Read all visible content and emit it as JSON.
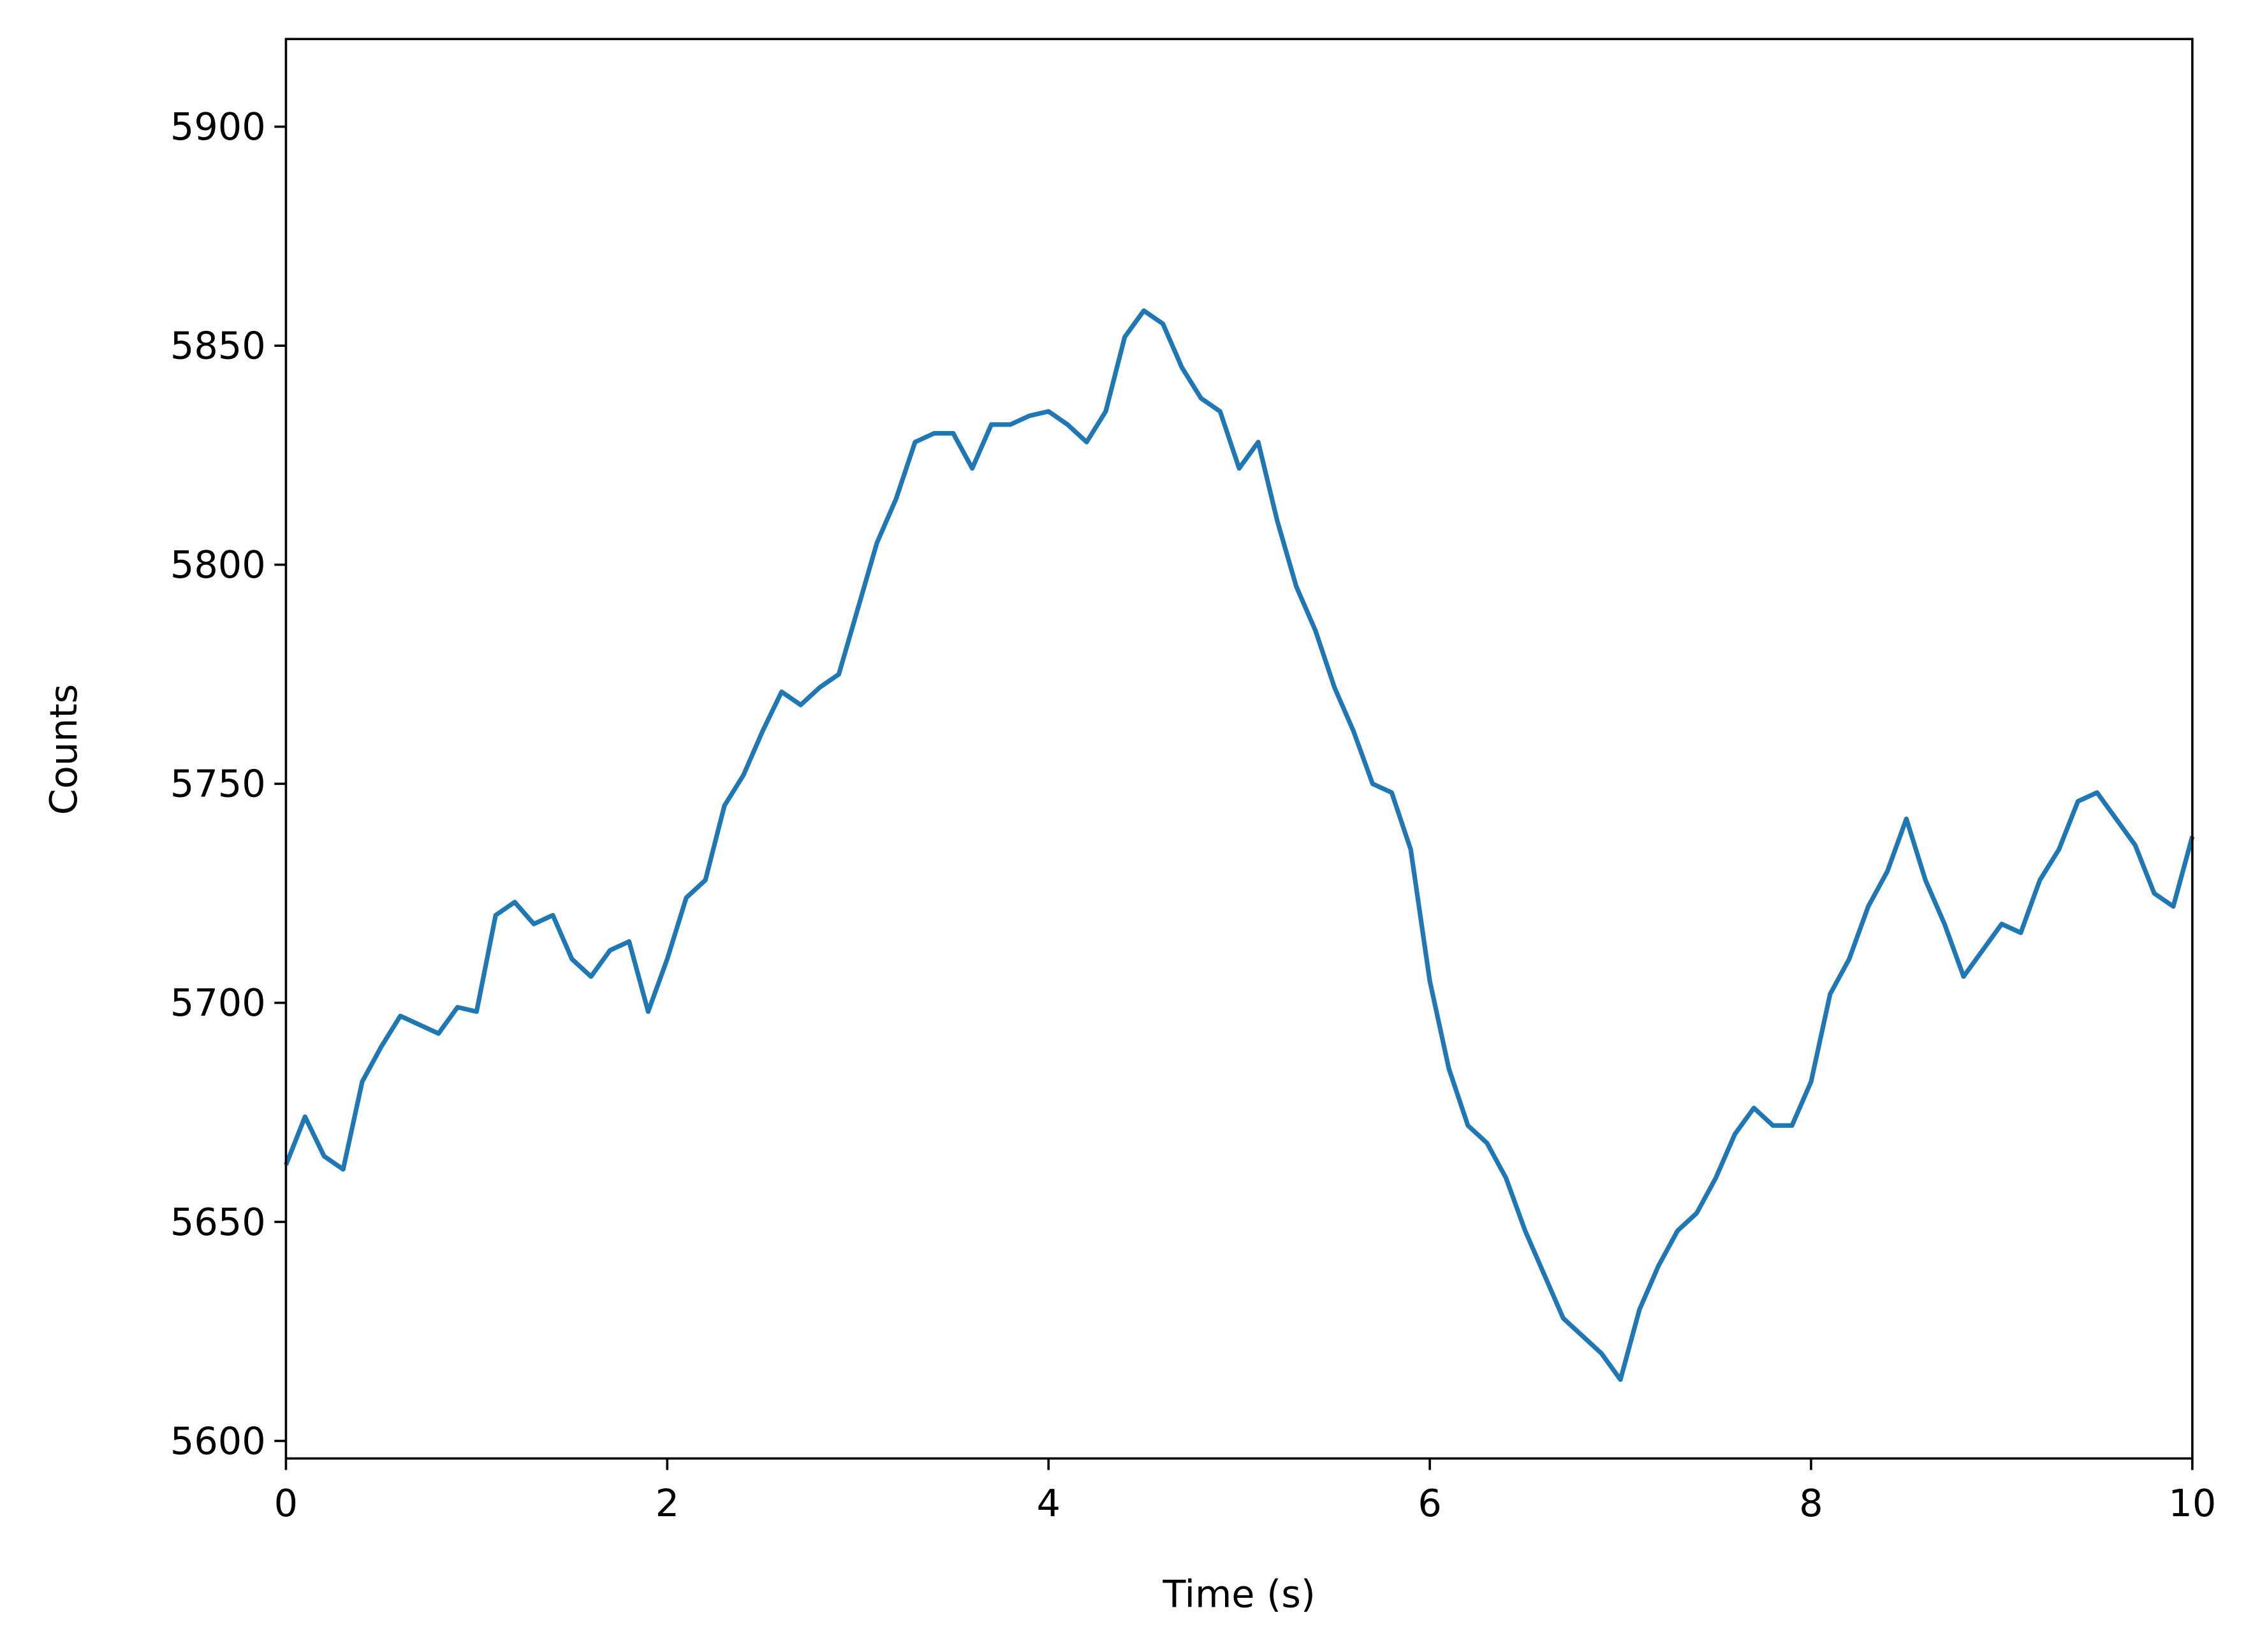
{
  "chart_data": {
    "type": "line",
    "xlabel": "Time (s)",
    "ylabel": "Counts",
    "x": [
      0,
      0.1,
      0.2,
      0.3,
      0.4,
      0.5,
      0.6,
      0.7,
      0.8,
      0.9,
      1,
      1.1,
      1.2,
      1.3,
      1.4,
      1.5,
      1.6,
      1.7,
      1.8,
      1.9,
      2,
      2.1,
      2.2,
      2.3,
      2.4,
      2.5,
      2.6,
      2.7,
      2.8,
      2.9,
      3,
      3.1,
      3.2,
      3.3,
      3.4,
      3.5,
      3.6,
      3.7,
      3.8,
      3.9,
      4,
      4.1,
      4.2,
      4.3,
      4.4,
      4.5,
      4.6,
      4.7,
      4.8,
      4.9,
      5,
      5.1,
      5.2,
      5.3,
      5.4,
      5.5,
      5.6,
      5.7,
      5.8,
      5.9,
      6,
      6.1,
      6.2,
      6.3,
      6.4,
      6.5,
      6.6,
      6.7,
      6.8,
      6.9,
      7,
      7.1,
      7.2,
      7.3,
      7.4,
      7.5,
      7.6,
      7.7,
      7.8,
      7.9,
      8,
      8.1,
      8.2,
      8.3,
      8.4,
      8.5,
      8.6,
      8.7,
      8.8,
      8.9,
      9,
      9.1,
      9.2,
      9.3,
      9.4,
      9.5,
      9.6,
      9.7,
      9.8,
      9.9,
      10
    ],
    "series": [
      {
        "color": "#1f77b4",
        "values": [
          5663,
          5674,
          5665,
          5662,
          5682,
          5690,
          5697,
          5695,
          5693,
          5699,
          5698,
          5720,
          5723,
          5718,
          5720,
          5710,
          5706,
          5712,
          5714,
          5698,
          5710,
          5724,
          5728,
          5745,
          5752,
          5762,
          5771,
          5768,
          5772,
          5775,
          5790,
          5805,
          5815,
          5828,
          5830,
          5830,
          5822,
          5832,
          5832,
          5834,
          5835,
          5832,
          5828,
          5835,
          5852,
          5858,
          5855,
          5845,
          5838,
          5835,
          5822,
          5828,
          5810,
          5795,
          5785,
          5772,
          5762,
          5750,
          5748,
          5735,
          5705,
          5685,
          5672,
          5668,
          5660,
          5648,
          5638,
          5628,
          5624,
          5620,
          5614,
          5630,
          5640,
          5648,
          5652,
          5660,
          5670,
          5676,
          5672,
          5672,
          5682,
          5702,
          5710,
          5722,
          5730,
          5742,
          5728,
          5718,
          5706,
          5712,
          5718,
          5716,
          5728,
          5735,
          5746,
          5748,
          5742,
          5736,
          5725,
          5722,
          5738
        ]
      }
    ],
    "xlim": [
      0,
      10
    ],
    "xticks": [
      0,
      2,
      4,
      6,
      8,
      10
    ],
    "ylim": [
      5596,
      5920
    ],
    "yticks": [
      5600,
      5650,
      5700,
      5750,
      5800,
      5850,
      5900
    ]
  }
}
